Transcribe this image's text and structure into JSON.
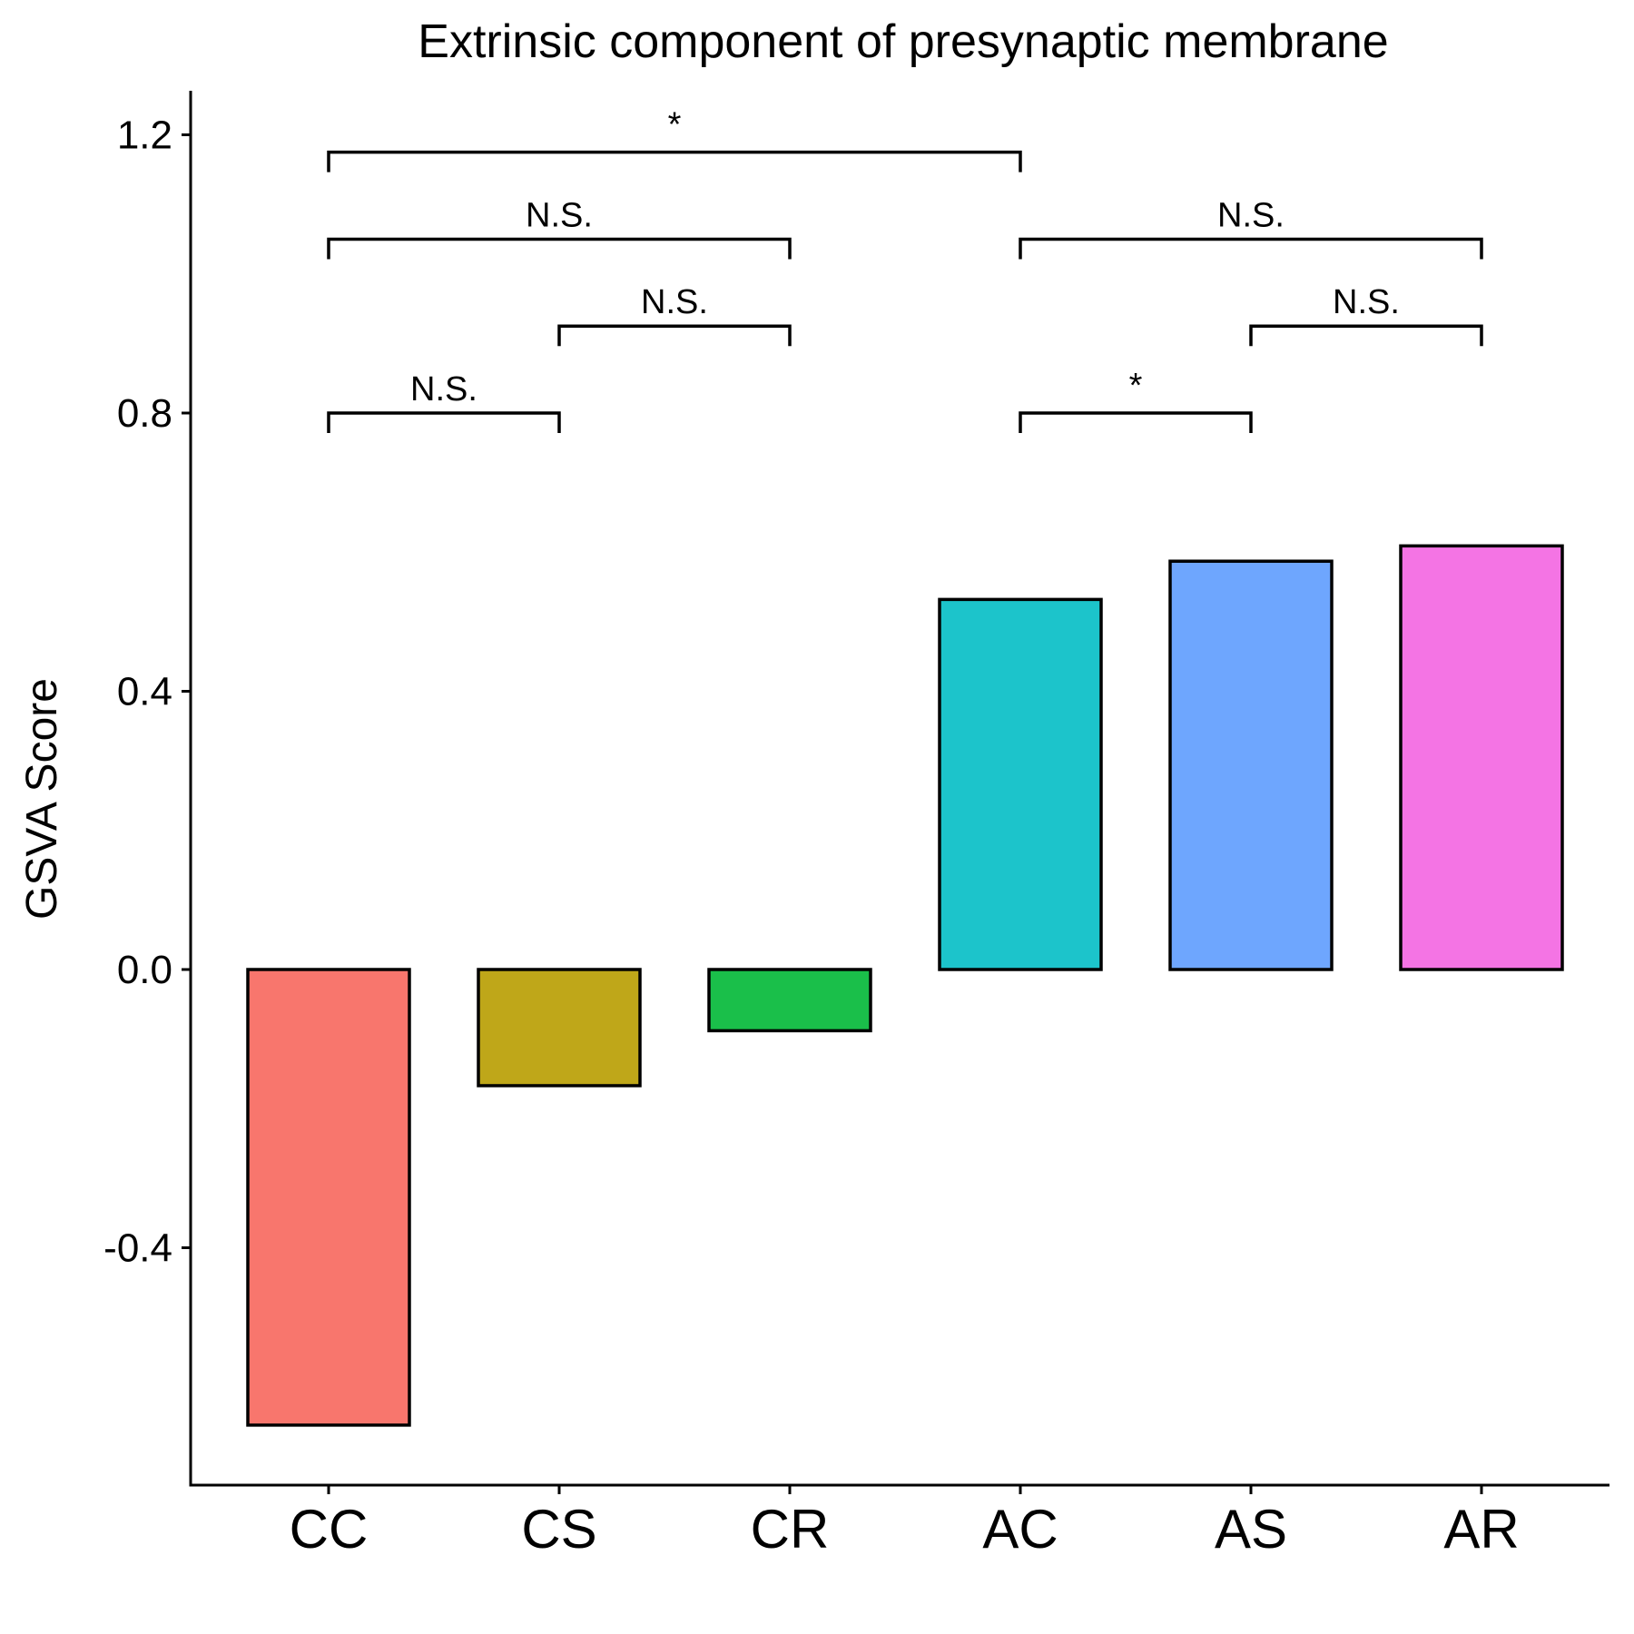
{
  "chart_data": {
    "type": "bar",
    "title": "Extrinsic component of presynaptic membrane",
    "xlabel": "",
    "ylabel": "GSVA Score",
    "categories": [
      "CC",
      "CS",
      "CR",
      "AC",
      "AS",
      "AR"
    ],
    "values": [
      -0.655,
      -0.167,
      -0.088,
      0.532,
      0.587,
      0.609
    ],
    "colors": [
      "#F8766D",
      "#BFA719",
      "#1ABF4A",
      "#1CC4CB",
      "#6EA6FE",
      "#F474E4"
    ],
    "ylim": [
      -0.74,
      1.27
    ],
    "yticks": [
      -0.4,
      0.0,
      0.4,
      0.8,
      1.2
    ],
    "ytick_labels": [
      "-0.4",
      "0.0",
      "0.4",
      "0.8",
      "1.2"
    ],
    "grid": false,
    "legend": "none",
    "comparisons": [
      {
        "from": "CC",
        "to": "CS",
        "y": 0.8,
        "label": "N.S."
      },
      {
        "from": "CS",
        "to": "CR",
        "y": 0.925,
        "label": "N.S."
      },
      {
        "from": "CC",
        "to": "CR",
        "y": 1.05,
        "label": "N.S."
      },
      {
        "from": "CC",
        "to": "AC",
        "y": 1.175,
        "label": "*"
      },
      {
        "from": "AC",
        "to": "AS",
        "y": 0.8,
        "label": "*"
      },
      {
        "from": "AS",
        "to": "AR",
        "y": 0.925,
        "label": "N.S."
      },
      {
        "from": "AC",
        "to": "AR",
        "y": 1.05,
        "label": "N.S."
      }
    ]
  }
}
